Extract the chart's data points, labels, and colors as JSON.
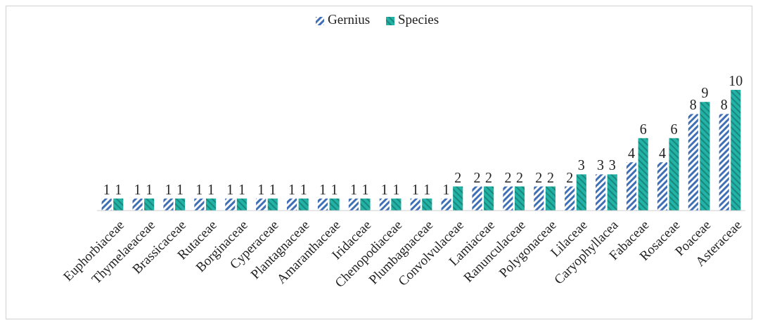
{
  "chart_data": {
    "type": "bar",
    "categories": [
      "Euphorbiaceae",
      "Thymelaeaceae",
      "Brassicaceae",
      "Rutaceae",
      "Borginaceae",
      "Cyperaceae",
      "Plantagnaceae",
      "Amaranthaceae",
      "Iridaceae",
      "Chenopodiaceae",
      "Plumbagnaceae",
      "Convolvulaceae",
      "Lamiaceae",
      "Ranunculaceae",
      "Polygonaceae",
      "Lilaceae",
      "Caryophyllacea",
      "Fabaceae",
      "Rosaceae",
      "Poaceae",
      "Asteraceae"
    ],
    "series": [
      {
        "name": "Gernius",
        "color": "#3f6fb5",
        "values": [
          1,
          1,
          1,
          1,
          1,
          1,
          1,
          1,
          1,
          1,
          1,
          1,
          2,
          2,
          2,
          2,
          3,
          4,
          4,
          8,
          8
        ]
      },
      {
        "name": "Species",
        "color": "#22b3a6",
        "values": [
          1,
          1,
          1,
          1,
          1,
          1,
          1,
          1,
          1,
          1,
          1,
          2,
          2,
          2,
          2,
          3,
          3,
          6,
          6,
          9,
          10
        ]
      }
    ],
    "data_labels": true,
    "legend": "top",
    "grid": false
  }
}
